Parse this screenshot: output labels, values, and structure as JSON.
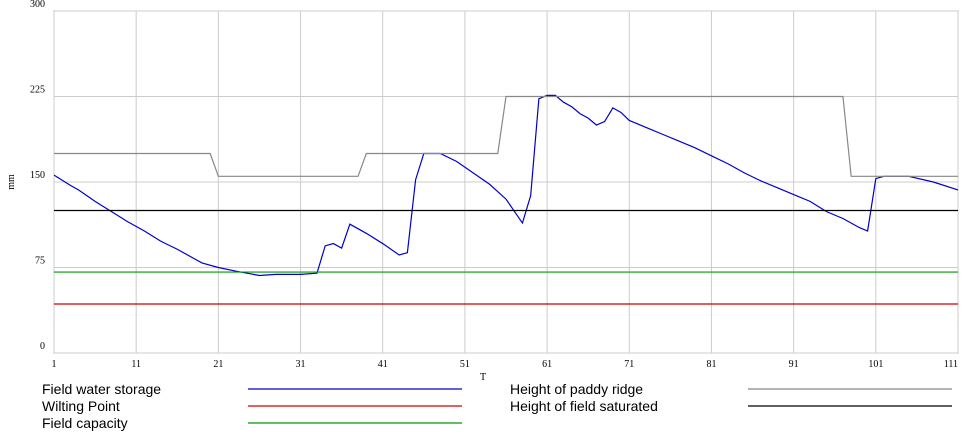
{
  "chart_data": {
    "type": "line",
    "y_label": "mm",
    "x_label": "T",
    "xlim": [
      1,
      111
    ],
    "xticks": [
      1,
      11,
      21,
      31,
      41,
      51,
      61,
      71,
      81,
      91,
      101,
      111
    ],
    "ylim": [
      0,
      300
    ],
    "yticks": [
      0,
      75,
      150,
      225,
      300
    ],
    "grid": true,
    "series": [
      {
        "name": "Field water storage",
        "color": "#0000cc",
        "x": [
          1,
          3,
          4,
          6,
          8,
          10,
          12,
          14,
          16,
          18,
          19,
          21,
          23,
          26,
          28,
          31,
          33,
          34,
          35,
          36,
          37,
          39,
          41,
          43,
          44,
          45,
          46,
          48,
          50,
          52,
          54,
          56,
          58,
          59,
          60,
          61,
          62,
          63,
          64,
          65,
          66,
          67,
          68,
          69,
          70,
          71,
          73,
          75,
          77,
          79,
          81,
          83,
          85,
          87,
          89,
          91,
          93,
          95,
          97,
          99,
          100,
          101,
          102,
          105,
          108,
          111
        ],
        "values": [
          156,
          147,
          143,
          133,
          124,
          115,
          107,
          98,
          91,
          83,
          79,
          75,
          72,
          68,
          69,
          69,
          70,
          94,
          96,
          92,
          113,
          105,
          96,
          86,
          88,
          152,
          175,
          175,
          168,
          158,
          148,
          135,
          114,
          138,
          223,
          226,
          226,
          220,
          216,
          210,
          206,
          200,
          203,
          215,
          211,
          204,
          198,
          192,
          186,
          180,
          173,
          166,
          158,
          151,
          145,
          139,
          133,
          124,
          118,
          110,
          107,
          153,
          155,
          155,
          150,
          143
        ]
      },
      {
        "name": "Wilting Point",
        "color": "#cc0000",
        "x": [
          1,
          111
        ],
        "values": [
          43,
          43
        ]
      },
      {
        "name": "Field capacity",
        "color": "#009900",
        "x": [
          1,
          111
        ],
        "values": [
          71,
          71
        ]
      },
      {
        "name": "Height of paddy ridge",
        "color": "#888888",
        "x": [
          1,
          20,
          21,
          38,
          39,
          55,
          56,
          97,
          98,
          111
        ],
        "values": [
          175,
          175,
          155,
          155,
          175,
          175,
          225,
          225,
          155,
          155
        ]
      },
      {
        "name": "Height of field saturated",
        "color": "#000000",
        "x": [
          1,
          111
        ],
        "values": [
          125,
          125
        ]
      }
    ]
  }
}
